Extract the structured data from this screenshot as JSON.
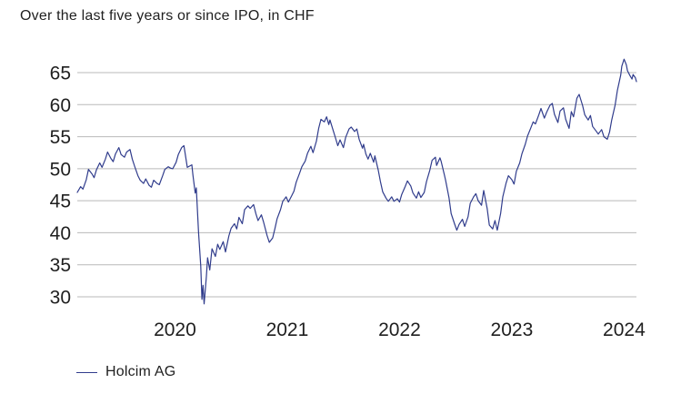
{
  "header": {
    "title": "Over the last five years or since IPO, in CHF"
  },
  "legend": {
    "items": [
      {
        "label": "Holcim AG",
        "color": "#303c8c"
      }
    ],
    "position": "bottom-left"
  },
  "chart_data": {
    "type": "line",
    "title": "Over the last five years or since IPO, in CHF",
    "xlabel": "",
    "ylabel": "CHF",
    "x_ticks": [
      2020,
      2021,
      2022,
      2023,
      2024
    ],
    "y_ticks": [
      30,
      35,
      40,
      45,
      50,
      55,
      60,
      65
    ],
    "xlim": [
      2019.13,
      2024.11
    ],
    "ylim": [
      28.5,
      68.5
    ],
    "grid": "horizontal",
    "grid_color": "#b9b9b9",
    "text_color": "#1f1f1f",
    "line_color": "#303c8c",
    "legend_position": "bottom-left",
    "series": [
      {
        "name": "Holcim AG",
        "color": "#303c8c",
        "points": [
          [
            2019.13,
            46.3
          ],
          [
            2019.16,
            47.2
          ],
          [
            2019.18,
            46.8
          ],
          [
            2019.21,
            48.3
          ],
          [
            2019.23,
            49.9
          ],
          [
            2019.26,
            49.2
          ],
          [
            2019.28,
            48.6
          ],
          [
            2019.3,
            49.8
          ],
          [
            2019.33,
            50.9
          ],
          [
            2019.35,
            50.2
          ],
          [
            2019.38,
            51.5
          ],
          [
            2019.4,
            52.6
          ],
          [
            2019.43,
            51.6
          ],
          [
            2019.45,
            51.1
          ],
          [
            2019.47,
            52.3
          ],
          [
            2019.5,
            53.3
          ],
          [
            2019.52,
            52.2
          ],
          [
            2019.55,
            51.8
          ],
          [
            2019.57,
            52.6
          ],
          [
            2019.6,
            53.0
          ],
          [
            2019.62,
            51.5
          ],
          [
            2019.64,
            50.4
          ],
          [
            2019.67,
            48.9
          ],
          [
            2019.69,
            48.2
          ],
          [
            2019.72,
            47.7
          ],
          [
            2019.74,
            48.4
          ],
          [
            2019.77,
            47.4
          ],
          [
            2019.79,
            47.1
          ],
          [
            2019.81,
            48.2
          ],
          [
            2019.84,
            47.7
          ],
          [
            2019.86,
            47.5
          ],
          [
            2019.89,
            48.9
          ],
          [
            2019.91,
            49.9
          ],
          [
            2019.94,
            50.3
          ],
          [
            2019.96,
            50.1
          ],
          [
            2019.98,
            50.0
          ],
          [
            2020.01,
            51.0
          ],
          [
            2020.03,
            52.2
          ],
          [
            2020.06,
            53.3
          ],
          [
            2020.08,
            53.6
          ],
          [
            2020.11,
            50.2
          ],
          [
            2020.13,
            50.4
          ],
          [
            2020.15,
            50.6
          ],
          [
            2020.16,
            49.0
          ],
          [
            2020.18,
            46.2
          ],
          [
            2020.19,
            47.0
          ],
          [
            2020.21,
            40.0
          ],
          [
            2020.23,
            34.8
          ],
          [
            2020.24,
            29.6
          ],
          [
            2020.25,
            31.8
          ],
          [
            2020.26,
            28.9
          ],
          [
            2020.28,
            33.2
          ],
          [
            2020.29,
            36.1
          ],
          [
            2020.31,
            34.2
          ],
          [
            2020.33,
            37.5
          ],
          [
            2020.36,
            36.3
          ],
          [
            2020.38,
            38.2
          ],
          [
            2020.4,
            37.4
          ],
          [
            2020.43,
            38.6
          ],
          [
            2020.45,
            37.0
          ],
          [
            2020.48,
            39.5
          ],
          [
            2020.5,
            40.7
          ],
          [
            2020.53,
            41.4
          ],
          [
            2020.55,
            40.6
          ],
          [
            2020.57,
            42.4
          ],
          [
            2020.6,
            41.4
          ],
          [
            2020.62,
            43.6
          ],
          [
            2020.65,
            44.2
          ],
          [
            2020.67,
            43.8
          ],
          [
            2020.7,
            44.4
          ],
          [
            2020.72,
            43.0
          ],
          [
            2020.74,
            41.9
          ],
          [
            2020.77,
            42.8
          ],
          [
            2020.79,
            41.6
          ],
          [
            2020.82,
            39.6
          ],
          [
            2020.84,
            38.5
          ],
          [
            2020.87,
            39.2
          ],
          [
            2020.89,
            40.6
          ],
          [
            2020.91,
            42.2
          ],
          [
            2020.94,
            43.6
          ],
          [
            2020.96,
            44.9
          ],
          [
            2020.99,
            45.6
          ],
          [
            2021.01,
            44.8
          ],
          [
            2021.04,
            45.8
          ],
          [
            2021.06,
            46.5
          ],
          [
            2021.08,
            47.9
          ],
          [
            2021.11,
            49.3
          ],
          [
            2021.13,
            50.3
          ],
          [
            2021.16,
            51.2
          ],
          [
            2021.18,
            52.4
          ],
          [
            2021.21,
            53.5
          ],
          [
            2021.23,
            52.5
          ],
          [
            2021.26,
            54.3
          ],
          [
            2021.28,
            56.3
          ],
          [
            2021.3,
            57.7
          ],
          [
            2021.33,
            57.3
          ],
          [
            2021.35,
            58.1
          ],
          [
            2021.37,
            56.9
          ],
          [
            2021.38,
            57.6
          ],
          [
            2021.41,
            55.9
          ],
          [
            2021.43,
            54.8
          ],
          [
            2021.45,
            53.6
          ],
          [
            2021.47,
            54.5
          ],
          [
            2021.5,
            53.3
          ],
          [
            2021.52,
            54.9
          ],
          [
            2021.55,
            56.2
          ],
          [
            2021.57,
            56.5
          ],
          [
            2021.6,
            55.8
          ],
          [
            2021.62,
            56.2
          ],
          [
            2021.64,
            54.6
          ],
          [
            2021.67,
            53.2
          ],
          [
            2021.68,
            53.8
          ],
          [
            2021.7,
            52.3
          ],
          [
            2021.72,
            51.5
          ],
          [
            2021.74,
            52.4
          ],
          [
            2021.77,
            51.0
          ],
          [
            2021.78,
            52.0
          ],
          [
            2021.81,
            49.8
          ],
          [
            2021.83,
            48.0
          ],
          [
            2021.85,
            46.4
          ],
          [
            2021.88,
            45.4
          ],
          [
            2021.9,
            44.9
          ],
          [
            2021.93,
            45.6
          ],
          [
            2021.95,
            44.9
          ],
          [
            2021.98,
            45.3
          ],
          [
            2022.0,
            44.8
          ],
          [
            2022.02,
            46.0
          ],
          [
            2022.05,
            47.2
          ],
          [
            2022.07,
            48.1
          ],
          [
            2022.1,
            47.3
          ],
          [
            2022.12,
            46.2
          ],
          [
            2022.15,
            45.4
          ],
          [
            2022.17,
            46.4
          ],
          [
            2022.19,
            45.5
          ],
          [
            2022.22,
            46.3
          ],
          [
            2022.24,
            48.0
          ],
          [
            2022.27,
            49.8
          ],
          [
            2022.29,
            51.3
          ],
          [
            2022.32,
            51.8
          ],
          [
            2022.33,
            50.5
          ],
          [
            2022.36,
            51.7
          ],
          [
            2022.37,
            51.2
          ],
          [
            2022.4,
            49.0
          ],
          [
            2022.41,
            48.2
          ],
          [
            2022.44,
            45.5
          ],
          [
            2022.46,
            43.0
          ],
          [
            2022.49,
            41.4
          ],
          [
            2022.51,
            40.4
          ],
          [
            2022.53,
            41.3
          ],
          [
            2022.56,
            42.1
          ],
          [
            2022.58,
            41.0
          ],
          [
            2022.61,
            42.5
          ],
          [
            2022.63,
            44.6
          ],
          [
            2022.66,
            45.6
          ],
          [
            2022.68,
            46.1
          ],
          [
            2022.7,
            45.0
          ],
          [
            2022.73,
            44.3
          ],
          [
            2022.75,
            46.6
          ],
          [
            2022.78,
            43.8
          ],
          [
            2022.8,
            41.2
          ],
          [
            2022.83,
            40.6
          ],
          [
            2022.85,
            41.9
          ],
          [
            2022.87,
            40.4
          ],
          [
            2022.9,
            43.0
          ],
          [
            2022.92,
            45.6
          ],
          [
            2022.95,
            47.8
          ],
          [
            2022.97,
            48.9
          ],
          [
            2023.0,
            48.3
          ],
          [
            2023.02,
            47.6
          ],
          [
            2023.04,
            49.6
          ],
          [
            2023.07,
            50.9
          ],
          [
            2023.09,
            52.3
          ],
          [
            2023.12,
            53.8
          ],
          [
            2023.14,
            55.1
          ],
          [
            2023.17,
            56.4
          ],
          [
            2023.19,
            57.3
          ],
          [
            2023.21,
            57.0
          ],
          [
            2023.24,
            58.4
          ],
          [
            2023.26,
            59.4
          ],
          [
            2023.29,
            57.9
          ],
          [
            2023.31,
            58.8
          ],
          [
            2023.34,
            59.9
          ],
          [
            2023.36,
            60.2
          ],
          [
            2023.38,
            58.5
          ],
          [
            2023.41,
            57.2
          ],
          [
            2023.43,
            59.0
          ],
          [
            2023.46,
            59.5
          ],
          [
            2023.48,
            57.7
          ],
          [
            2023.51,
            56.3
          ],
          [
            2023.53,
            58.9
          ],
          [
            2023.55,
            58.1
          ],
          [
            2023.58,
            61.0
          ],
          [
            2023.6,
            61.6
          ],
          [
            2023.63,
            59.9
          ],
          [
            2023.65,
            58.4
          ],
          [
            2023.68,
            57.6
          ],
          [
            2023.7,
            58.3
          ],
          [
            2023.72,
            56.6
          ],
          [
            2023.75,
            55.9
          ],
          [
            2023.77,
            55.4
          ],
          [
            2023.8,
            56.1
          ],
          [
            2023.82,
            55.0
          ],
          [
            2023.85,
            54.6
          ],
          [
            2023.87,
            55.7
          ],
          [
            2023.89,
            57.6
          ],
          [
            2023.92,
            59.9
          ],
          [
            2023.94,
            62.2
          ],
          [
            2023.97,
            64.6
          ],
          [
            2023.98,
            66.0
          ],
          [
            2024.0,
            67.1
          ],
          [
            2024.02,
            66.2
          ],
          [
            2024.03,
            65.3
          ],
          [
            2024.05,
            64.6
          ],
          [
            2024.07,
            64.0
          ],
          [
            2024.08,
            64.7
          ],
          [
            2024.1,
            64.2
          ],
          [
            2024.11,
            63.6
          ]
        ]
      }
    ]
  }
}
